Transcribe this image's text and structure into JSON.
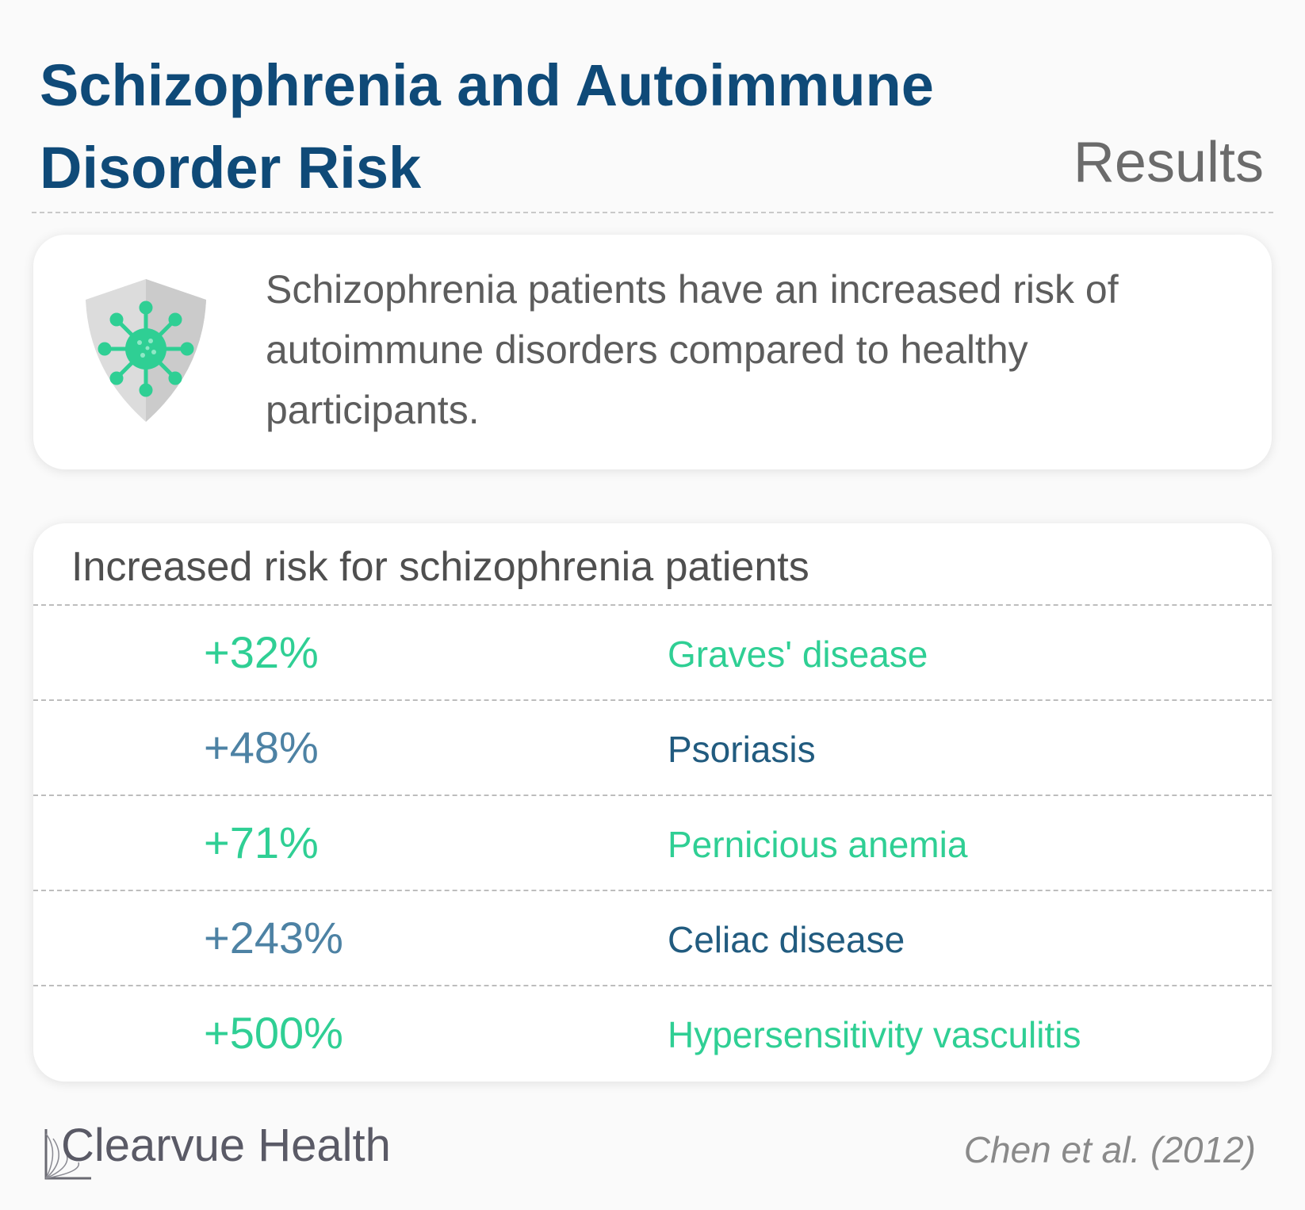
{
  "header": {
    "title": "Schizophrenia and Autoimmune Disorder Risk",
    "section": "Results"
  },
  "summary": {
    "icon": "shield-virus-icon",
    "text": "Schizophrenia patients have an increased risk of autoimmune disorders compared to healthy participants."
  },
  "risk_table": {
    "heading": "Increased risk for schizophrenia patients",
    "rows": [
      {
        "value": "+32%",
        "label": "Graves' disease"
      },
      {
        "value": "+48%",
        "label": "Psoriasis"
      },
      {
        "value": "+71%",
        "label": "Pernicious anemia"
      },
      {
        "value": "+243%",
        "label": "Celiac disease"
      },
      {
        "value": "+500%",
        "label": "Hypersensitivity vasculitis"
      }
    ]
  },
  "footer": {
    "brand": "Clearvue Health",
    "citation": "Chen et al. (2012)"
  },
  "colors": {
    "title": "#0f4a78",
    "green": "#2fcf94",
    "blue_value": "#4d82a4",
    "blue_label": "#215b7f"
  }
}
